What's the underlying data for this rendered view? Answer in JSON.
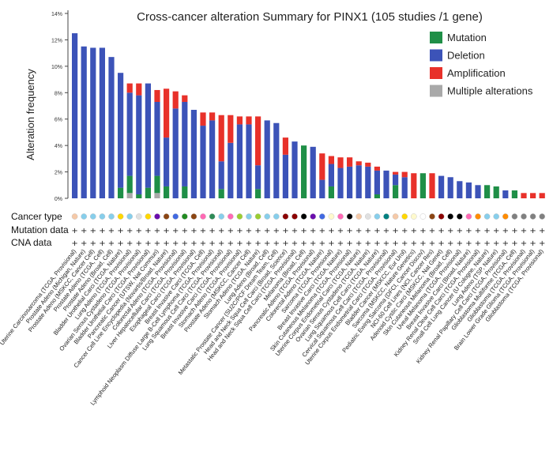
{
  "chart_data": {
    "type": "bar",
    "title": "Cross-cancer alteration Summary for PINX1 (105 studies /1 gene)",
    "ylabel": "Alteration frequency",
    "xlabel": "",
    "ylim": [
      0,
      14
    ],
    "yticks": [
      "0%",
      "2%",
      "4%",
      "6%",
      "8%",
      "10%",
      "12%",
      "14%"
    ],
    "stacked": true,
    "legend": {
      "placement": "top-right",
      "items": [
        {
          "name": "Mutation",
          "color": "#1f8f47"
        },
        {
          "name": "Deletion",
          "color": "#3c53b8"
        },
        {
          "name": "Amplification",
          "color": "#e8312a"
        },
        {
          "name": "Multiple alterations",
          "color": "#a9a9a9"
        }
      ]
    },
    "series_order": [
      "Multiple alterations",
      "Mutation",
      "Deletion",
      "Amplification"
    ],
    "row_labels": [
      "Cancer type",
      "Mutation data",
      "CNA data"
    ],
    "studies": [
      {
        "name": "Uterine Carcinosarcoma (TCGA, Provisional)",
        "mut": 0,
        "del": 12.5,
        "amp": 0,
        "mult": 0,
        "type_color": "#f5c9a8",
        "mut_data": "+",
        "cna_data": "+"
      },
      {
        "name": "Prostate Adeno (Michigan, Nature)",
        "mut": 0,
        "del": 11.5,
        "amp": 0,
        "mult": 0,
        "type_color": "#87ceeb",
        "mut_data": "+",
        "cna_data": "+"
      },
      {
        "name": "Prostate Adeno (MSKCC, Cancer Cell)",
        "mut": 0,
        "del": 11.4,
        "amp": 0,
        "mult": 0,
        "type_color": "#87ceeb",
        "mut_data": "+",
        "cna_data": "+"
      },
      {
        "name": "Prostate Adeno (TCGA, Cell)",
        "mut": 0,
        "del": 11.4,
        "amp": 0,
        "mult": 0,
        "type_color": "#87ceeb",
        "mut_data": "+",
        "cna_data": "+"
      },
      {
        "name": "Prostate Adeno (Broad, Cell)",
        "mut": 0,
        "del": 10.7,
        "amp": 0,
        "mult": 0,
        "type_color": "#87ceeb",
        "mut_data": "+",
        "cna_data": "+"
      },
      {
        "name": "Bladder Urothelial Carci (TCGA, Nature)",
        "mut": 0.8,
        "del": 8.7,
        "amp": 0,
        "mult": 0,
        "type_color": "#ffd700",
        "mut_data": "+",
        "cna_data": "+"
      },
      {
        "name": "Lung Adeno (TCGA, Provisional)",
        "mut": 1.3,
        "del": 6.3,
        "amp": 0.7,
        "mult": 0.4,
        "type_color": "#87ceeb",
        "mut_data": "+",
        "cna_data": "+"
      },
      {
        "name": "Ovarian Serous Cystadeno (TCGA, Provisional)",
        "mut": 0.3,
        "del": 7.5,
        "amp": 0.9,
        "mult": 0,
        "type_color": "#e0e0e0",
        "mut_data": "+",
        "cna_data": "+"
      },
      {
        "name": "Bladder Urothelial Carci (TCGA, Provisional)",
        "mut": 0.8,
        "del": 7.9,
        "amp": 0,
        "mult": 0,
        "type_color": "#ffd700",
        "mut_data": "+",
        "cna_data": "+"
      },
      {
        "name": "Pancreatic Cancer (UTSW, Nat Commun)",
        "mut": 1.3,
        "del": 5.6,
        "amp": 0.9,
        "mult": 0.4,
        "type_color": "#6a0dad",
        "mut_data": "+",
        "cna_data": "+"
      },
      {
        "name": "Cancer Cell Line Encyclopedia (Novartis/Broad, Nature)",
        "mut": 0.9,
        "del": 3.7,
        "amp": 3.7,
        "mult": 0,
        "type_color": "#8b4513",
        "mut_data": "+",
        "cna_data": "+"
      },
      {
        "name": "Colorectal Adeno (TCGA, Provisional)",
        "mut": 0,
        "del": 6.8,
        "amp": 1.3,
        "mult": 0,
        "type_color": "#4169e1",
        "mut_data": "+",
        "cna_data": "+"
      },
      {
        "name": "Liver Hepatocellular Carci (TCGA, Provisional)",
        "mut": 0.9,
        "del": 6.4,
        "amp": 0.5,
        "mult": 0,
        "type_color": "#228b22",
        "mut_data": "+",
        "cna_data": "+"
      },
      {
        "name": "Esophageal Carci (TCGA, Provisional)",
        "mut": 0,
        "del": 6.7,
        "amp": 0,
        "mult": 0,
        "type_color": "#8b4513",
        "mut_data": "+",
        "cna_data": "+"
      },
      {
        "name": "Breast Invasive Carci (TCGA, Cell)",
        "mut": 0,
        "del": 5.5,
        "amp": 1.0,
        "mult": 0,
        "type_color": "#ff69b4",
        "mut_data": "+",
        "cna_data": "+"
      },
      {
        "name": "Lymphoid Neoplasm Diffuse Large B-Cell Lymphoma (TCGA, Provisional)",
        "mut": 0,
        "del": 5.9,
        "amp": 0.6,
        "mult": 0,
        "type_color": "#2e8b57",
        "mut_data": "+",
        "cna_data": "+"
      },
      {
        "name": "Lung Squamous Cell Carci (TCGA, Provisional)",
        "mut": 0.7,
        "del": 2.1,
        "amp": 3.5,
        "mult": 0,
        "type_color": "#87ceeb",
        "mut_data": "+",
        "cna_data": "+"
      },
      {
        "name": "Breast Invasive Carci (TCGA, Provisional)",
        "mut": 0,
        "del": 4.2,
        "amp": 2.1,
        "mult": 0,
        "type_color": "#ff69b4",
        "mut_data": "+",
        "cna_data": "+"
      },
      {
        "name": "Stomach Adeno (TCGA, Provisional)",
        "mut": 0,
        "del": 5.6,
        "amp": 0.6,
        "mult": 0,
        "type_color": "#9acd32",
        "mut_data": "+",
        "cna_data": "+"
      },
      {
        "name": "Prostate Adeno (MSKCC, Cancer Cell)",
        "mut": 0,
        "del": 5.6,
        "amp": 0.6,
        "mult": 0,
        "type_color": "#87ceeb",
        "mut_data": "+",
        "cna_data": "+"
      },
      {
        "name": "Stomach Adeno (TCGA, Nature)",
        "mut": 0.7,
        "del": 1.8,
        "amp": 3.7,
        "mult": 0,
        "type_color": "#9acd32",
        "mut_data": "+",
        "cna_data": "+"
      },
      {
        "name": "Lung Adeno (Broad, Cell)",
        "mut": 0,
        "del": 5.9,
        "amp": 0,
        "mult": 0,
        "type_color": "#87ceeb",
        "mut_data": "+",
        "cna_data": "+"
      },
      {
        "name": "Metastatic Prostate Cancer (SU2C/PCF Dream Team, Cell)",
        "mut": 0,
        "del": 5.7,
        "amp": 0,
        "mult": 0,
        "type_color": "#87ceeb",
        "mut_data": "+",
        "cna_data": "+"
      },
      {
        "name": "Head and Neck Squa Cell Carci (Broad, Science)",
        "mut": 0,
        "del": 3.3,
        "amp": 1.3,
        "mult": 0,
        "type_color": "#8b0000",
        "mut_data": "+",
        "cna_data": "+"
      },
      {
        "name": "Head and Neck Squa Cell Carci (TCGA, Provisional)",
        "mut": 0,
        "del": 4.3,
        "amp": 0,
        "mult": 0,
        "type_color": "#8b0000",
        "mut_data": "+",
        "cna_data": "+"
      },
      {
        "name": "Melanoma (Broad, Cell)",
        "mut": 4.0,
        "del": 0,
        "amp": 0,
        "mult": 0,
        "type_color": "#000000",
        "mut_data": "+",
        "cna_data": "+"
      },
      {
        "name": "Pancreatic Adeno (TCGA, Provisional)",
        "mut": 0,
        "del": 3.9,
        "amp": 0,
        "mult": 0,
        "type_color": "#6a0dad",
        "mut_data": "+",
        "cna_data": "+"
      },
      {
        "name": "Colorectal Adeno (TCGA, Nature)",
        "mut": 0,
        "del": 1.4,
        "amp": 2.0,
        "mult": 0,
        "type_color": "#4169e1",
        "mut_data": "+",
        "cna_data": "+"
      },
      {
        "name": "Sarcoma (TCGA, Provisional)",
        "mut": 0.9,
        "del": 1.7,
        "amp": 0.6,
        "mult": 0,
        "type_color": "#fffacd",
        "mut_data": "+",
        "cna_data": "+"
      },
      {
        "name": "Breast Invasive Carci (TCGA, Nature)",
        "mut": 0,
        "del": 2.3,
        "amp": 0.8,
        "mult": 0,
        "type_color": "#ff69b4",
        "mut_data": "+",
        "cna_data": "+"
      },
      {
        "name": "Skin Cutaneous Melanoma (TCGA, Provisional)",
        "mut": 0,
        "del": 2.4,
        "amp": 0.7,
        "mult": 0,
        "type_color": "#000000",
        "mut_data": "+",
        "cna_data": "+"
      },
      {
        "name": "Uterine Corpus Endometrial Carci (TCGA, Nature)",
        "mut": 0,
        "del": 2.5,
        "amp": 0.3,
        "mult": 0,
        "type_color": "#f5c9a8",
        "mut_data": "+",
        "cna_data": "+"
      },
      {
        "name": "Ovarian Serous Cystadeno (TCGA, Nature)",
        "mut": 0,
        "del": 2.4,
        "amp": 0.3,
        "mult": 0,
        "type_color": "#e0e0e0",
        "mut_data": "+",
        "cna_data": "+"
      },
      {
        "name": "Lung Squamous Cell Carci (TCGA, Nature)",
        "mut": 0.3,
        "del": 1.8,
        "amp": 0.3,
        "mult": 0,
        "type_color": "#87ceeb",
        "mut_data": "+",
        "cna_data": "+"
      },
      {
        "name": "Cervical Squamous Cell Carci (TCGA, Provisional)",
        "mut": 0,
        "del": 2.1,
        "amp": 0,
        "mult": 0,
        "type_color": "#008080",
        "mut_data": "+",
        "cna_data": "+"
      },
      {
        "name": "Uterine Corpus Endometrial Carci (TCGA, Provisional)",
        "mut": 1.0,
        "del": 0.8,
        "amp": 0.2,
        "mult": 0,
        "type_color": "#f5c9a8",
        "mut_data": "+",
        "cna_data": "+"
      },
      {
        "name": "Bladder Cancer (MSKCC, Eur Urol)",
        "mut": 0,
        "del": 1.6,
        "amp": 0.4,
        "mult": 0,
        "type_color": "#ffd700",
        "mut_data": "+",
        "cna_data": "+"
      },
      {
        "name": "Sarcoma (MSKCC, Nature Genetics)",
        "mut": 0,
        "del": 0,
        "amp": 1.9,
        "mult": 0,
        "type_color": "#fffacd",
        "mut_data": "+",
        "cna_data": "+"
      },
      {
        "name": "Pediatric Ewing Sarcoma (DFCI, Cancer Discov)",
        "mut": 1.9,
        "del": 0,
        "amp": 0,
        "mult": 0,
        "type_color": "#ffffff",
        "mut_data": "+",
        "cna_data": "+"
      },
      {
        "name": "NCI-60 Cell Lines (NCI, Cancer Res)",
        "mut": 0,
        "del": 0,
        "amp": 1.9,
        "mult": 0,
        "type_color": "#8b4513",
        "mut_data": "+",
        "cna_data": "+"
      },
      {
        "name": "Adenoid Cystic Carci (MSKCC, Nat Genet)",
        "mut": 0,
        "del": 1.7,
        "amp": 0,
        "mult": 0,
        "type_color": "#8b0000",
        "mut_data": "+",
        "cna_data": "+"
      },
      {
        "name": "Skin Cutaneous Melanoma (Broad, Cell)",
        "mut": 0,
        "del": 1.6,
        "amp": 0,
        "mult": 0,
        "type_color": "#000000",
        "mut_data": "+",
        "cna_data": "+"
      },
      {
        "name": "Uveal Melanoma (TCGA, Provisional)",
        "mut": 0,
        "del": 1.3,
        "amp": 0,
        "mult": 0,
        "type_color": "#000000",
        "mut_data": "+",
        "cna_data": "+"
      },
      {
        "name": "Breast Invasive Carci (Broad, Nature)",
        "mut": 0,
        "del": 1.2,
        "amp": 0,
        "mult": 0,
        "type_color": "#ff69b4",
        "mut_data": "+",
        "cna_data": "+"
      },
      {
        "name": "Kidney Renal Clear Cell Carci (TCGA, Provisional)",
        "mut": 0,
        "del": 1.0,
        "amp": 0,
        "mult": 0,
        "type_color": "#ff8c00",
        "mut_data": "+",
        "cna_data": "+"
      },
      {
        "name": "Small Cell Lung Cancer (U Cologne, Nature)",
        "mut": 1.0,
        "del": 0,
        "amp": 0,
        "mult": 0,
        "type_color": "#87ceeb",
        "mut_data": "+",
        "cna_data": "+"
      },
      {
        "name": "Lung Adeno (TSP, Nature)",
        "mut": 0.9,
        "del": 0,
        "amp": 0,
        "mult": 0,
        "type_color": "#87ceeb",
        "mut_data": "+",
        "cna_data": "+"
      },
      {
        "name": "Kidney Renal Papillary Cell Carci (TCGA, Provisional)",
        "mut": 0,
        "del": 0.6,
        "amp": 0,
        "mult": 0,
        "type_color": "#ff8c00",
        "mut_data": "+",
        "cna_data": "+"
      },
      {
        "name": "Glioblastoma Multiforme (TCGA, Cell)",
        "mut": 0.6,
        "del": 0,
        "amp": 0,
        "mult": 0,
        "type_color": "#808080",
        "mut_data": "+",
        "cna_data": "+"
      },
      {
        "name": "Glioblastoma (TCGA, Provisional)",
        "mut": 0,
        "del": 0,
        "amp": 0.4,
        "mult": 0,
        "type_color": "#808080",
        "mut_data": "+",
        "cna_data": "+"
      },
      {
        "name": "Brain Lower Grade Glioma (TCGA, Provisional)",
        "mut": 0,
        "del": 0,
        "amp": 0.4,
        "mult": 0,
        "type_color": "#808080",
        "mut_data": "+",
        "cna_data": "+"
      },
      {
        "name": "Glioblastoma (TCGA, Provisional)",
        "mut": 0,
        "del": 0,
        "amp": 0.4,
        "mult": 0,
        "type_color": "#808080",
        "mut_data": "+",
        "cna_data": "+"
      }
    ]
  }
}
